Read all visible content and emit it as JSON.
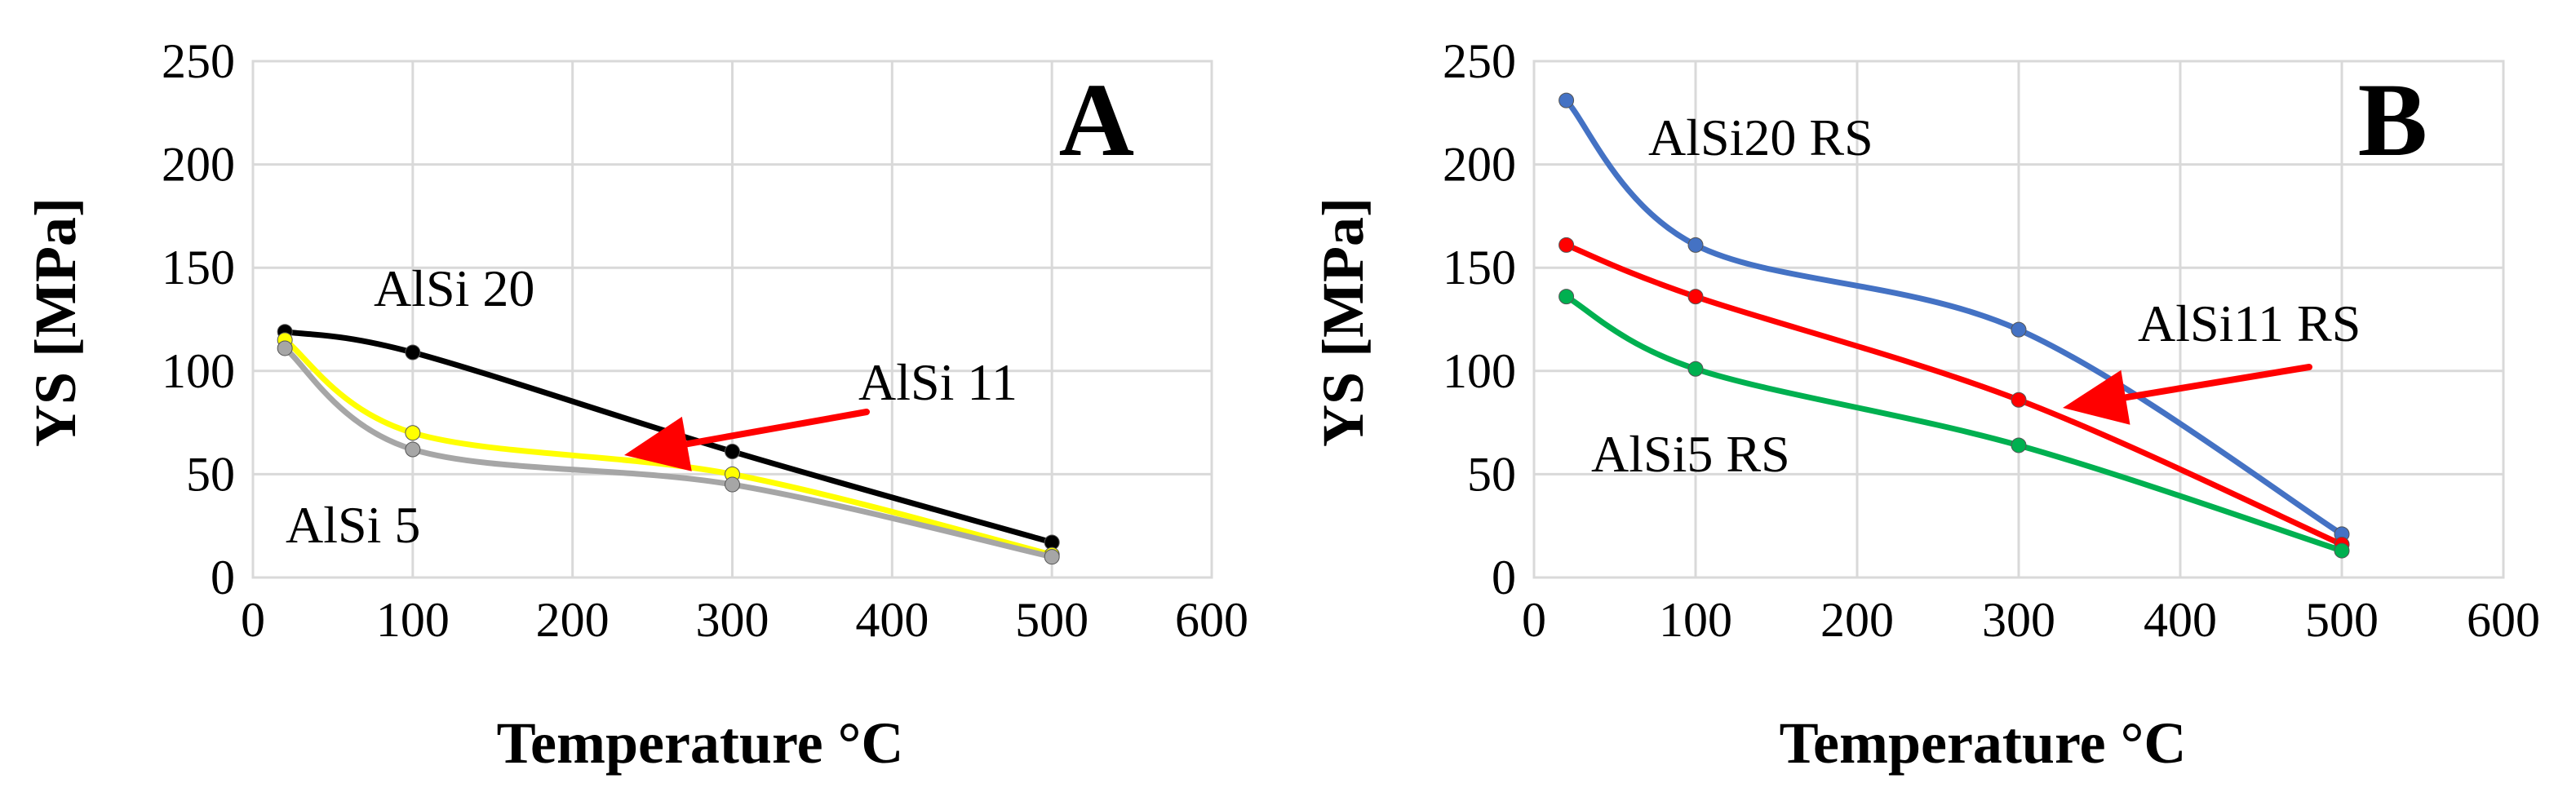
{
  "chart_data": [
    {
      "type": "line",
      "panel_label": "A",
      "xlabel": "Temperature °C",
      "ylabel": "YS [MPa]",
      "xlim": [
        0,
        600
      ],
      "ylim": [
        0,
        250
      ],
      "xticks": [
        "0",
        "100",
        "200",
        "300",
        "400",
        "500",
        "600"
      ],
      "yticks": [
        "0",
        "50",
        "100",
        "150",
        "200",
        "250"
      ],
      "grid": true,
      "series": [
        {
          "name": "AlSi 20",
          "color": "#000000",
          "x": [
            20,
            100,
            300,
            500
          ],
          "y": [
            119,
            109,
            61,
            17
          ]
        },
        {
          "name": "AlSi 11",
          "color": "#ffff00",
          "x": [
            20,
            100,
            300,
            500
          ],
          "y": [
            115,
            70,
            50,
            11
          ]
        },
        {
          "name": "AlSi 5",
          "color": "#a6a6a6",
          "x": [
            20,
            100,
            300,
            500
          ],
          "y": [
            111,
            62,
            45,
            10
          ]
        }
      ],
      "annotations": [
        {
          "text": "AlSi 20"
        },
        {
          "text": "AlSi 11",
          "arrow": true,
          "arrow_color": "#ff0000"
        },
        {
          "text": "AlSi 5"
        }
      ]
    },
    {
      "type": "line",
      "panel_label": "B",
      "xlabel": "Temperature  °C",
      "ylabel": "YS [MPa]",
      "xlim": [
        0,
        600
      ],
      "ylim": [
        0,
        250
      ],
      "xticks": [
        "0",
        "100",
        "200",
        "300",
        "400",
        "500",
        "600"
      ],
      "yticks": [
        "0",
        "50",
        "100",
        "150",
        "200",
        "250"
      ],
      "grid": true,
      "series": [
        {
          "name": "AlSi20 RS",
          "color": "#4472c4",
          "x": [
            20,
            100,
            300,
            500
          ],
          "y": [
            231,
            161,
            120,
            21
          ]
        },
        {
          "name": "AlSi11 RS",
          "color": "#ff0000",
          "x": [
            20,
            100,
            300,
            500
          ],
          "y": [
            161,
            136,
            86,
            16
          ]
        },
        {
          "name": "AlSi5 RS",
          "color": "#00b050",
          "x": [
            20,
            100,
            300,
            500
          ],
          "y": [
            136,
            101,
            64,
            13
          ]
        }
      ],
      "annotations": [
        {
          "text": "AlSi20 RS"
        },
        {
          "text": "AlSi11 RS",
          "arrow": true,
          "arrow_color": "#ff0000"
        },
        {
          "text": "AlSi5 RS"
        }
      ]
    }
  ]
}
